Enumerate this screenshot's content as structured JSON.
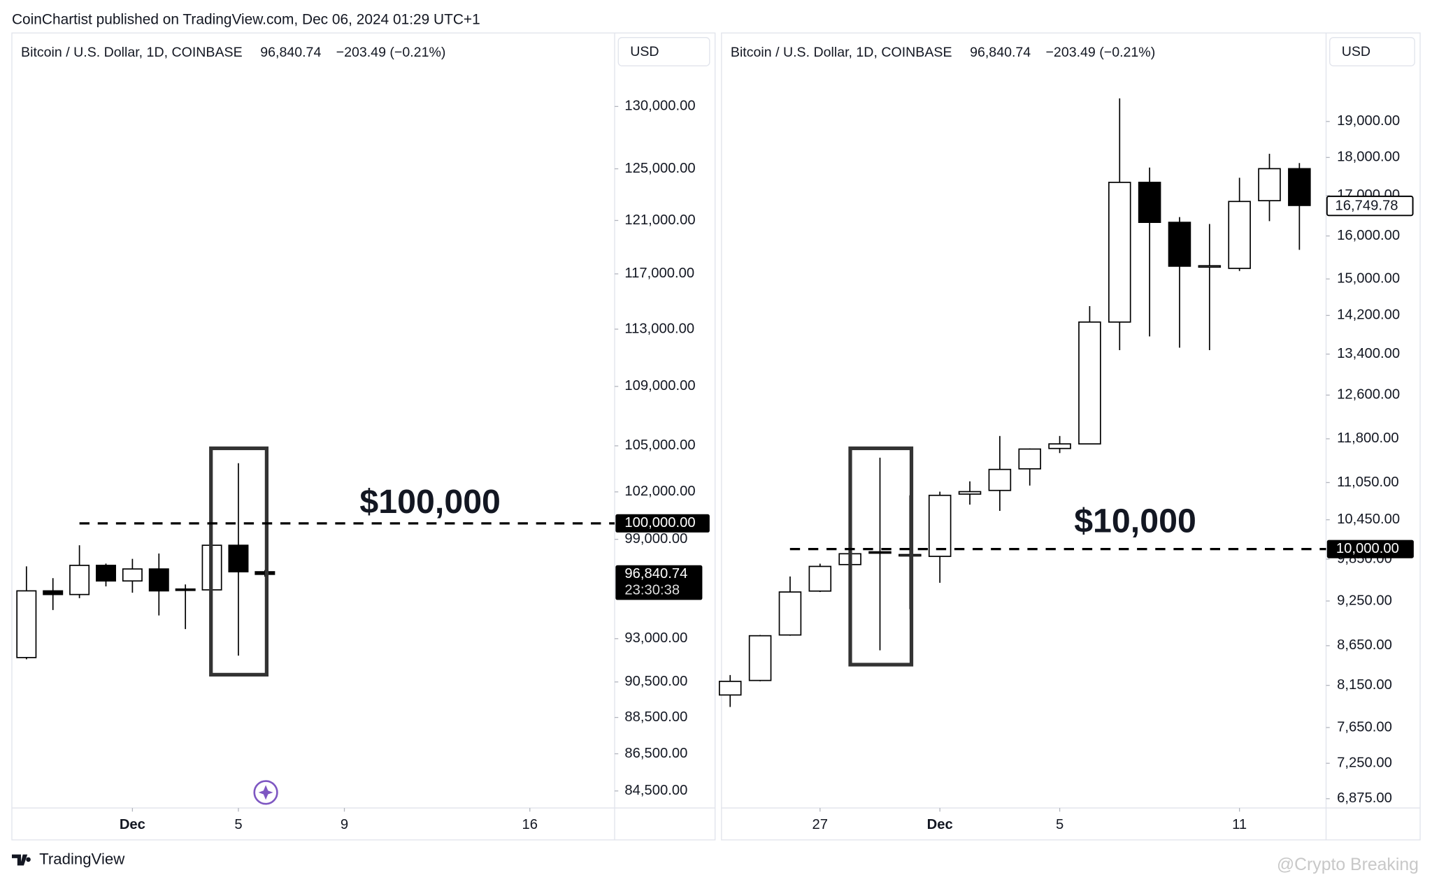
{
  "header": "CoinChartist published on TradingView.com, Dec 06, 2024 01:29 UTC+1",
  "footer": {
    "brand": "TradingView",
    "watermark": "@Crypto Breaking"
  },
  "chart_data": [
    {
      "type": "candlestick",
      "symbol": "Bitcoin / U.S. Dollar, 1D, COINBASE",
      "price": "96,840.74",
      "change": "−203.49 (−0.21%)",
      "currency": "USD",
      "log": true,
      "up_color": "#ffffff",
      "down_color": "#000000",
      "wick_color": "#000000",
      "x": [
        0,
        1,
        2,
        3,
        4,
        5,
        6,
        7,
        8,
        9
      ],
      "open": [
        91900,
        95840,
        95620,
        97390,
        96440,
        97170,
        95950,
        95900,
        98630,
        97000
      ],
      "high": [
        97330,
        96610,
        98630,
        97500,
        97790,
        98120,
        96230,
        98630,
        103860,
        97100
      ],
      "low": [
        91800,
        94690,
        95400,
        96110,
        95730,
        94370,
        93560,
        94580,
        92010,
        96700
      ],
      "close": [
        95840,
        95620,
        97390,
        96440,
        97170,
        95840,
        95900,
        98630,
        97000,
        96840.74
      ],
      "last_label": "96,840.74",
      "countdown": "23:30:38",
      "level": {
        "value": 100000,
        "label": "100,000.00"
      },
      "annotation": "$100,000",
      "xlim": [
        -0.55,
        22.2
      ],
      "xticks": [
        {
          "value": 4,
          "label": "Dec",
          "bold": true
        },
        {
          "value": 8,
          "label": "5"
        },
        {
          "value": 12,
          "label": "9"
        },
        {
          "value": 19,
          "label": "16"
        }
      ],
      "ylim": [
        83600,
        136000
      ],
      "yticks": [
        {
          "value": 130000,
          "label": "130,000.00"
        },
        {
          "value": 125000,
          "label": "125,000.00"
        },
        {
          "value": 121000,
          "label": "121,000.00"
        },
        {
          "value": 117000,
          "label": "117,000.00"
        },
        {
          "value": 113000,
          "label": "113,000.00"
        },
        {
          "value": 109000,
          "label": "109,000.00"
        },
        {
          "value": 105000,
          "label": "105,000.00"
        },
        {
          "value": 102000,
          "label": "102,000.00"
        },
        {
          "value": 99000,
          "label": "99,000.00"
        },
        {
          "value": 93000,
          "label": "93,000.00"
        },
        {
          "value": 90500,
          "label": "90,500.00"
        },
        {
          "value": 88500,
          "label": "88,500.00"
        },
        {
          "value": 86500,
          "label": "86,500.00"
        },
        {
          "value": 84500,
          "label": "84,500.00"
        }
      ]
    },
    {
      "type": "candlestick",
      "symbol": "Bitcoin / U.S. Dollar, 1D, COINBASE",
      "price": "96,840.74",
      "change": "−203.49 (−0.21%)",
      "currency": "USD",
      "log": true,
      "up_color": "#ffffff",
      "down_color": "#000000",
      "wick_color": "#000000",
      "x": [
        -3,
        -2,
        -1,
        0,
        1,
        2,
        3,
        4,
        5,
        6,
        7,
        8,
        9,
        10,
        11,
        12,
        13,
        14,
        15,
        16
      ],
      "open": [
        8033,
        8210,
        8790,
        9389,
        9770,
        9959,
        9905,
        9891,
        10860,
        10920,
        11280,
        11630,
        11710,
        14060,
        17340,
        16330,
        15290,
        15240,
        16870,
        17700
      ],
      "high": [
        8277,
        8790,
        9597,
        9783,
        9973,
        11470,
        10840,
        10900,
        11070,
        11850,
        11630,
        11850,
        14400,
        19670,
        17730,
        16460,
        16290,
        17460,
        18100,
        17850
      ],
      "low": [
        7890,
        8200,
        8780,
        9376,
        9743,
        8590,
        9136,
        9506,
        10690,
        10590,
        11000,
        11550,
        11710,
        13480,
        13760,
        13530,
        13480,
        15180,
        16360,
        15670
      ],
      "close": [
        8199,
        8780,
        9376,
        9743,
        9930,
        9945,
        9918,
        10840,
        10900,
        11270,
        11620,
        11710,
        14060,
        17340,
        16330,
        15290,
        15300,
        16850,
        17700,
        16749.78
      ],
      "last_label": "16,749.78",
      "level": {
        "value": 10000,
        "label": "10,000.00"
      },
      "annotation": "$10,000",
      "xlim": [
        -3.29,
        16.89
      ],
      "xticks": [
        {
          "value": 0,
          "label": "27"
        },
        {
          "value": 4,
          "label": "Dec",
          "bold": true
        },
        {
          "value": 8,
          "label": "5"
        },
        {
          "value": 14,
          "label": "11"
        }
      ],
      "ylim": [
        6780,
        21640
      ],
      "yticks": [
        {
          "value": 19000,
          "label": "19,000.00"
        },
        {
          "value": 18000,
          "label": "18,000.00"
        },
        {
          "value": 17000,
          "label": "17,000.00"
        },
        {
          "value": 16000,
          "label": "16,000.00"
        },
        {
          "value": 15000,
          "label": "15,000.00"
        },
        {
          "value": 14200,
          "label": "14,200.00"
        },
        {
          "value": 13400,
          "label": "13,400.00"
        },
        {
          "value": 12600,
          "label": "12,600.00"
        },
        {
          "value": 11800,
          "label": "11,800.00"
        },
        {
          "value": 11050,
          "label": "11,050.00"
        },
        {
          "value": 10450,
          "label": "10,450.00"
        },
        {
          "value": 9850,
          "label": "9,850.00"
        },
        {
          "value": 9250,
          "label": "9,250.00"
        },
        {
          "value": 8650,
          "label": "8,650.00"
        },
        {
          "value": 8150,
          "label": "8,150.00"
        },
        {
          "value": 7650,
          "label": "7,650.00"
        },
        {
          "value": 7250,
          "label": "7,250.00"
        },
        {
          "value": 6875,
          "label": "6,875.00"
        }
      ]
    }
  ]
}
